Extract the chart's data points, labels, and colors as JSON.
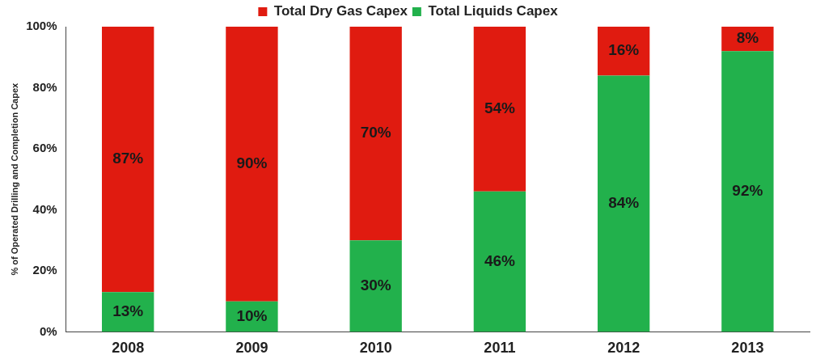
{
  "chart_data": {
    "type": "bar",
    "stacked": true,
    "ylabel": "% of Operated Drilling and Completion Capex",
    "categories": [
      "2008",
      "2009",
      "2010",
      "2011",
      "2012",
      "2013"
    ],
    "series": [
      {
        "name": "Total Liquids Capex",
        "color": "#22b14c",
        "values": [
          13,
          10,
          30,
          46,
          84,
          92
        ],
        "value_labels": [
          "13%",
          "10%",
          "30%",
          "46%",
          "84%",
          "92%"
        ]
      },
      {
        "name": "Total Dry Gas Capex",
        "color": "#e01b10",
        "values": [
          87,
          90,
          70,
          54,
          16,
          8
        ],
        "value_labels": [
          "87%",
          "90%",
          "70%",
          "54%",
          "16%",
          "8%"
        ]
      }
    ],
    "ylim": [
      0,
      100
    ],
    "yticks": [
      {
        "value": 0,
        "label": "0%"
      },
      {
        "value": 20,
        "label": "20%"
      },
      {
        "value": 40,
        "label": "40%"
      },
      {
        "value": 60,
        "label": "60%"
      },
      {
        "value": 80,
        "label": "80%"
      },
      {
        "value": 100,
        "label": "100%"
      }
    ],
    "grid": false,
    "legend": "top"
  }
}
